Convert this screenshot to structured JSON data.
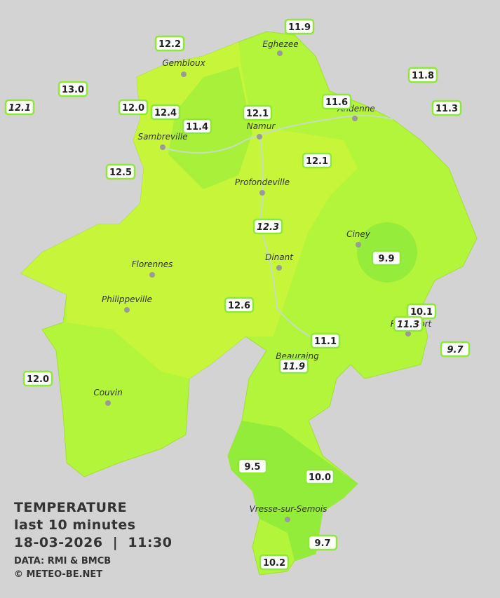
{
  "map": {
    "cities": [
      "Eghezee",
      "Gembloux",
      "Andenne",
      "Namur",
      "Sambreville",
      "Profondeville",
      "Ciney",
      "Dinant",
      "Florennes",
      "Philippeville",
      "Rochefort",
      "Beauraing",
      "Couvin",
      "Vresse-sur-Semois"
    ],
    "stations": [
      "12.2",
      "11.9",
      "11.8",
      "13.0",
      "12.1",
      "12.0",
      "12.4",
      "11.6",
      "11.3",
      "11.4",
      "12.1",
      "12.1",
      "12.5",
      "12.3",
      "9.9",
      "12.6",
      "10.1",
      "11.3",
      "9.7",
      "11.1",
      "11.9",
      "12.0",
      "9.5",
      "10.0",
      "9.7",
      "10.2"
    ],
    "legend": {
      "title": "TEMPERATURE",
      "period": "last 10 minutes",
      "timestamp": "18-03-2026  |  11:30",
      "source": "DATA: RMI & BMCB",
      "credit": "© METEO-BE.NET"
    }
  }
}
